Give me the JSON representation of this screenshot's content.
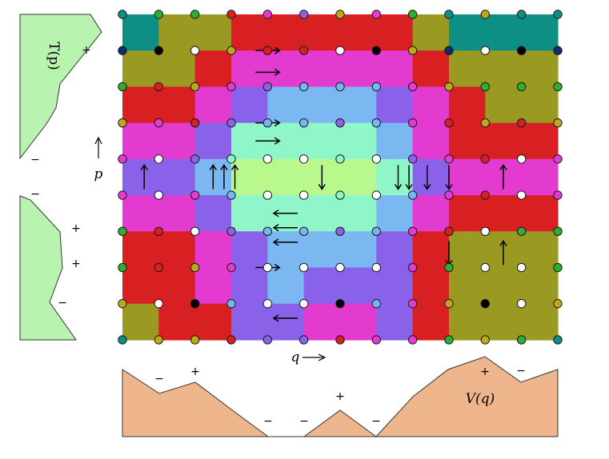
{
  "labels": {
    "q_axis": "q",
    "p_axis": "p",
    "T_label": "T(p)",
    "V_label": "V(q)"
  },
  "palette": [
    "#0d8f86",
    "#9a9a22",
    "#d81f22",
    "#e33ad0",
    "#8a62ea",
    "#7bb7f0",
    "#8ef6c8",
    "#b8f88c"
  ],
  "grid": {
    "columns": 13,
    "rows": 10,
    "markers": [
      [
        "teal",
        "green",
        "green",
        "red",
        "magenta",
        "purple",
        "olive",
        "magenta",
        "green",
        "teal",
        "olive",
        "teal",
        "teal"
      ],
      [
        "navy",
        "black",
        "white",
        "olive",
        "red",
        "red",
        "white",
        "black",
        "olive",
        "navy",
        "white",
        "black",
        "navy"
      ],
      [
        "green",
        "red",
        "olive",
        "magenta",
        "purple",
        "lightblue",
        "lightblue",
        "lightblue",
        "magenta",
        "olive",
        "green",
        "green",
        "green"
      ],
      [
        "olive",
        "magenta",
        "red",
        "purple",
        "lightblue",
        "lightblue",
        "purple",
        "lightblue",
        "magenta",
        "red",
        "olive",
        "red",
        "olive"
      ],
      [
        "magenta",
        "white",
        "purple",
        "mint",
        "white",
        "white",
        "mint",
        "white",
        "purple",
        "magenta",
        "red",
        "white",
        "magenta"
      ],
      [
        "magenta",
        "white",
        "magenta",
        "lightblue",
        "white",
        "white",
        "mint",
        "white",
        "lightblue",
        "magenta",
        "red",
        "white",
        "magenta"
      ],
      [
        "green",
        "red",
        "white",
        "purple",
        "lightblue",
        "lightblue",
        "purple",
        "lightblue",
        "magenta",
        "red",
        "white",
        "green",
        "green"
      ],
      [
        "green",
        "red",
        "olive",
        "magenta",
        "white",
        "white",
        "white",
        "white",
        "magenta",
        "green",
        "white",
        "white",
        "green"
      ],
      [
        "olive",
        "white",
        "black",
        "lightblue",
        "white",
        "white",
        "black",
        "lightblue",
        "magenta",
        "olive",
        "black",
        "white",
        "olive"
      ],
      [
        "teal",
        "olive",
        "olive",
        "red",
        "purple",
        "purple",
        "red",
        "magenta",
        "magenta",
        "green",
        "olive",
        "green",
        "teal"
      ]
    ]
  },
  "field": [
    [
      0,
      1,
      1,
      2,
      2,
      2,
      1,
      2,
      1,
      0,
      0,
      0,
      0
    ],
    [
      0,
      0,
      1,
      1,
      2,
      2,
      1,
      2,
      1,
      0,
      0,
      0,
      0
    ],
    [
      1,
      2,
      1,
      3,
      4,
      5,
      4,
      5,
      3,
      2,
      1,
      1,
      1
    ],
    [
      1,
      3,
      2,
      4,
      5,
      5,
      4,
      5,
      3,
      2,
      1,
      2,
      1
    ],
    [
      3,
      4,
      3,
      6,
      7,
      7,
      6,
      7,
      4,
      3,
      2,
      3,
      3
    ],
    [
      3,
      4,
      3,
      6,
      7,
      7,
      6,
      7,
      4,
      3,
      2,
      3,
      3
    ],
    [
      1,
      2,
      3,
      4,
      5,
      5,
      4,
      5,
      3,
      2,
      1,
      1,
      1
    ],
    [
      1,
      2,
      1,
      3,
      5,
      5,
      4,
      5,
      3,
      1,
      0,
      0,
      1
    ],
    [
      1,
      2,
      2,
      4,
      5,
      5,
      3,
      5,
      3,
      1,
      1,
      1,
      1
    ],
    [
      0,
      1,
      1,
      2,
      3,
      3,
      2,
      3,
      3,
      1,
      1,
      0,
      0
    ]
  ],
  "arrows": [
    {
      "col": 4,
      "row": 1,
      "dir": "right"
    },
    {
      "col": 4,
      "row": 1.6,
      "dir": "right"
    },
    {
      "col": 4,
      "row": 3,
      "dir": "right"
    },
    {
      "col": 4,
      "row": 3.5,
      "dir": "right"
    },
    {
      "col": 0.6,
      "row": 4.5,
      "dir": "up"
    },
    {
      "col": 2.5,
      "row": 4.5,
      "dir": "up"
    },
    {
      "col": 2.8,
      "row": 4.5,
      "dir": "up"
    },
    {
      "col": 3.1,
      "row": 4.5,
      "dir": "up"
    },
    {
      "col": 5.5,
      "row": 4.5,
      "dir": "down"
    },
    {
      "col": 7.6,
      "row": 4.5,
      "dir": "down"
    },
    {
      "col": 7.9,
      "row": 4.5,
      "dir": "down"
    },
    {
      "col": 8.4,
      "row": 4.5,
      "dir": "down"
    },
    {
      "col": 9,
      "row": 4.5,
      "dir": "down"
    },
    {
      "col": 10.5,
      "row": 4.5,
      "dir": "up"
    },
    {
      "col": 4.5,
      "row": 5.5,
      "dir": "left"
    },
    {
      "col": 4.5,
      "row": 5.9,
      "dir": "left"
    },
    {
      "col": 4.5,
      "row": 6.3,
      "dir": "left"
    },
    {
      "col": 9,
      "row": 6.6,
      "dir": "down"
    },
    {
      "col": 10.5,
      "row": 6.6,
      "dir": "up"
    },
    {
      "col": 4,
      "row": 7,
      "dir": "right"
    },
    {
      "col": 4.5,
      "row": 8.4,
      "dir": "left"
    }
  ],
  "T_signs": [
    "+",
    "−",
    "−",
    "+",
    "+",
    "−"
  ],
  "V_signs": [
    "−",
    "+",
    "−",
    "−",
    "+",
    "−",
    "+",
    "−"
  ]
}
